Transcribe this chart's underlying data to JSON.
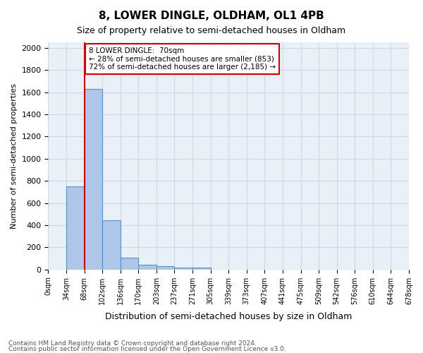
{
  "title": "8, LOWER DINGLE, OLDHAM, OL1 4PB",
  "subtitle": "Size of property relative to semi-detached houses in Oldham",
  "xlabel": "Distribution of semi-detached houses by size in Oldham",
  "ylabel": "Number of semi-detached properties",
  "footnote1": "Contains HM Land Registry data © Crown copyright and database right 2024.",
  "footnote2": "Contains public sector information licensed under the Open Government Licence v3.0.",
  "bin_labels": [
    "0sqm",
    "34sqm",
    "68sqm",
    "102sqm",
    "136sqm",
    "170sqm",
    "203sqm",
    "237sqm",
    "271sqm",
    "305sqm",
    "339sqm",
    "373sqm",
    "407sqm",
    "441sqm",
    "475sqm",
    "509sqm",
    "542sqm",
    "576sqm",
    "610sqm",
    "644sqm",
    "678sqm"
  ],
  "bar_values": [
    0,
    750,
    1630,
    445,
    110,
    45,
    30,
    20,
    20,
    0,
    0,
    0,
    0,
    0,
    0,
    0,
    0,
    0,
    0,
    0
  ],
  "bar_color": "#aec6e8",
  "bar_edge_color": "#5a8fc2",
  "ylim": [
    0,
    2050
  ],
  "yticks": [
    0,
    200,
    400,
    600,
    800,
    1000,
    1200,
    1400,
    1600,
    1800,
    2000
  ],
  "red_line_x": 2,
  "annotation_text": "8 LOWER DINGLE:  70sqm\n← 28% of semi-detached houses are smaller (853)\n72% of semi-detached houses are larger (2,185) →",
  "annotation_box_color": "#ffffff",
  "annotation_box_edge": "#cc0000",
  "grid_color": "#d0d8e8",
  "bg_color": "#eaf0f8"
}
